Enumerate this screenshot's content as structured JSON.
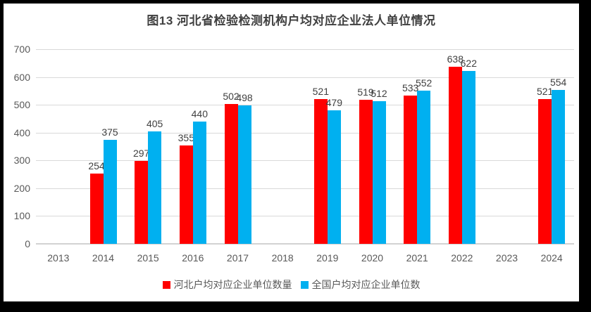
{
  "title": "图13 河北省检验检测机构户均对应企业法人单位情况",
  "colors": {
    "hebei_series": "#ff0000",
    "national_series": "#00b0f0",
    "gridline": "#d9d9d9",
    "tick_text": "#595959",
    "data_label_text": "#404040",
    "frame": "#000000",
    "background": "#ffffff"
  },
  "chart_data": {
    "type": "bar",
    "title": "图13 河北省检验检测机构户均对应企业法人单位情况",
    "categories": [
      "2013",
      "2014",
      "2015",
      "2016",
      "2017",
      "2018",
      "2019",
      "2020",
      "2021",
      "2022",
      "2023",
      "2024"
    ],
    "series": [
      {
        "name": "河北户均对应企业单位数量",
        "color": "#ff0000",
        "values": [
          null,
          254,
          297,
          355,
          502,
          null,
          521,
          519,
          533,
          638,
          null,
          521
        ]
      },
      {
        "name": "全国户均对应企业单位数",
        "color": "#00b0f0",
        "values": [
          null,
          375,
          405,
          440,
          498,
          null,
          479,
          512,
          552,
          622,
          null,
          554
        ]
      }
    ],
    "xlabel": "",
    "ylabel": "",
    "ylim": [
      0,
      700
    ],
    "ytick_step": 100,
    "yticks": [
      "0",
      "100",
      "200",
      "300",
      "400",
      "500",
      "600",
      "700"
    ],
    "grid": true,
    "data_labels": true,
    "legend_position": "bottom"
  }
}
